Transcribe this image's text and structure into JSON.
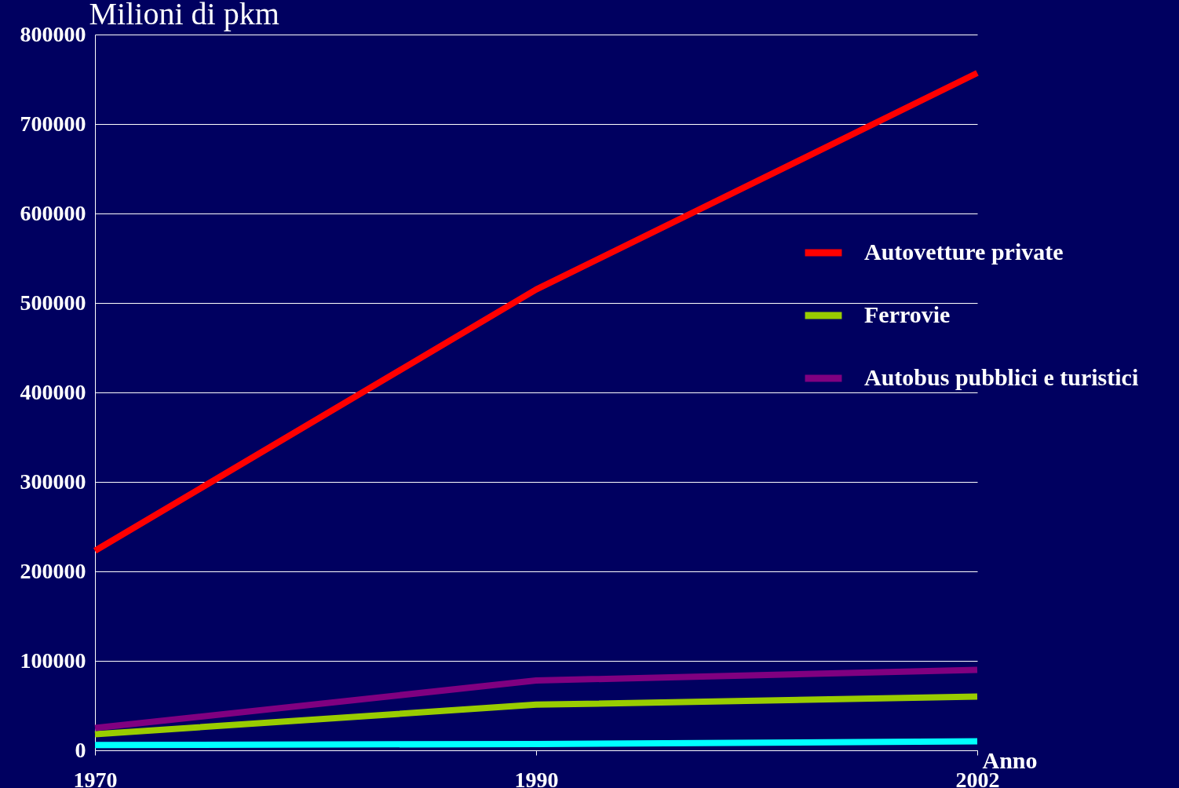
{
  "chart_data": {
    "type": "line",
    "ylabel": "Milioni di pkm",
    "xlabel": "Anno",
    "categories": [
      "1970",
      "1990",
      "2002"
    ],
    "series": [
      {
        "name": "Autovetture private",
        "color": "#ff0000",
        "values": [
          223000,
          515000,
          757000
        ]
      },
      {
        "name": "Ferrovie",
        "color": "#99cc00",
        "values": [
          18000,
          51000,
          60000
        ]
      },
      {
        "name": "Autobus pubblici e turistici",
        "color": "#800080",
        "values": [
          25000,
          78000,
          90000
        ]
      },
      {
        "color": "#00ffff",
        "values": [
          6000,
          7000,
          10000
        ]
      }
    ],
    "ylim": [
      0,
      800000
    ],
    "yticks": [
      0,
      100000,
      200000,
      300000,
      400000,
      500000,
      600000,
      700000,
      800000
    ],
    "grid": "y",
    "legend": "right",
    "marker": "none",
    "line_style": "solid"
  }
}
